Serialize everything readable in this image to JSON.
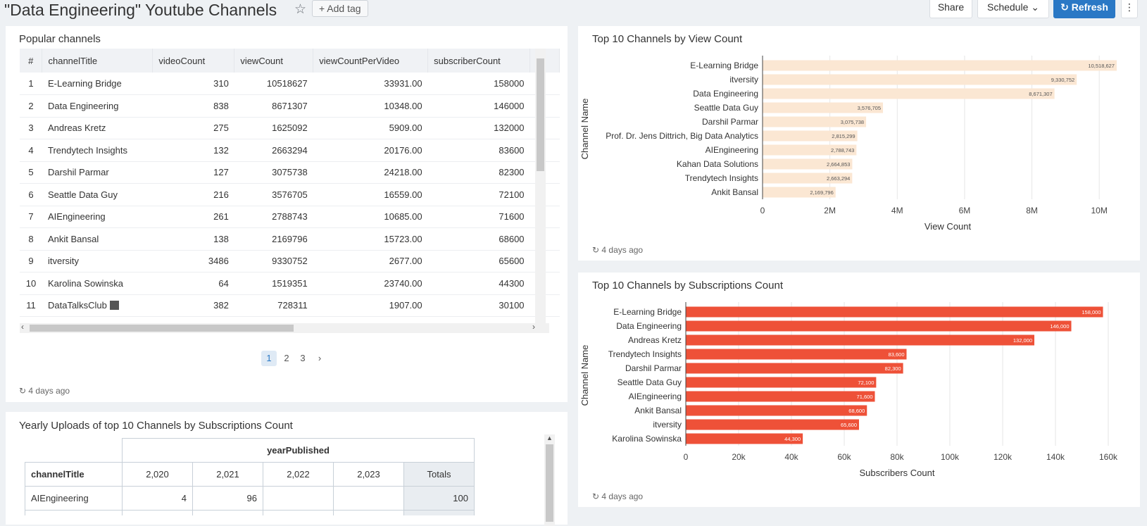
{
  "header": {
    "title": "\"Data Engineering\" Youtube Channels",
    "add_tag": "Add tag",
    "share": "Share",
    "schedule": "Schedule",
    "refresh": "Refresh"
  },
  "popular": {
    "title": "Popular channels",
    "columns": [
      "#",
      "channelTitle",
      "videoCount",
      "viewCount",
      "viewCountPerVideo",
      "subscriberCount"
    ],
    "rows": [
      [
        "1",
        "E-Learning Bridge",
        "310",
        "10518627",
        "33931.00",
        "158000"
      ],
      [
        "2",
        "Data Engineering",
        "838",
        "8671307",
        "10348.00",
        "146000"
      ],
      [
        "3",
        "Andreas Kretz",
        "275",
        "1625092",
        "5909.00",
        "132000"
      ],
      [
        "4",
        "Trendytech Insights",
        "132",
        "2663294",
        "20176.00",
        "83600"
      ],
      [
        "5",
        "Darshil Parmar",
        "127",
        "3075738",
        "24218.00",
        "82300"
      ],
      [
        "6",
        "Seattle Data Guy",
        "216",
        "3576705",
        "16559.00",
        "72100"
      ],
      [
        "7",
        "AIEngineering",
        "261",
        "2788743",
        "10685.00",
        "71600"
      ],
      [
        "8",
        "Ankit Bansal",
        "138",
        "2169796",
        "15723.00",
        "68600"
      ],
      [
        "9",
        "itversity",
        "3486",
        "9330752",
        "2677.00",
        "65600"
      ],
      [
        "10",
        "Karolina Sowinska",
        "64",
        "1519351",
        "23740.00",
        "44300"
      ],
      [
        "11",
        "DataTalksClub",
        "382",
        "728311",
        "1907.00",
        "30100"
      ]
    ],
    "pages": [
      "1",
      "2",
      "3"
    ],
    "footer": "4 days ago"
  },
  "yearly": {
    "title": "Yearly Uploads of top 10 Channels by Subscriptions Count",
    "col_group": "yearPublished",
    "row_header": "channelTitle",
    "years": [
      "2,020",
      "2,021",
      "2,022",
      "2,023"
    ],
    "totals_label": "Totals",
    "rows": [
      {
        "name": "AIEngineering",
        "values": [
          "4",
          "96",
          "",
          ""
        ],
        "total": "100"
      }
    ]
  },
  "views_chart": {
    "title": "Top 10 Channels by View Count",
    "footer": "4 days ago",
    "bar_color": "#fbe7d3"
  },
  "subs_chart": {
    "title": "Top 10 Channels by Subscriptions Count",
    "footer": "4 days ago",
    "bar_color": "#ee5138"
  },
  "chart_data": [
    {
      "type": "bar",
      "orientation": "horizontal",
      "title": "Top 10 Channels by View Count",
      "xlabel": "View Count",
      "ylabel": "Channel Name",
      "categories": [
        "E-Learning Bridge",
        "itversity",
        "Data Engineering",
        "Seattle Data Guy",
        "Darshil Parmar",
        "Prof. Dr. Jens Dittrich, Big Data Analytics",
        "AIEngineering",
        "Kahan Data Solutions",
        "Trendytech Insights",
        "Ankit Bansal"
      ],
      "values": [
        10518627,
        9330752,
        8671307,
        3576705,
        3075738,
        2815299,
        2788743,
        2664853,
        2663294,
        2169796
      ],
      "labels": [
        "10,518,627",
        "9,330,752",
        "8,671,307",
        "3,576,705",
        "3,075,738",
        "2,815,299",
        "2,788,743",
        "2,664,853",
        "2,663,294",
        "2,169,796"
      ],
      "xlim": [
        0,
        11000000
      ],
      "xticks": [
        0,
        2000000,
        4000000,
        6000000,
        8000000,
        10000000
      ],
      "xtick_labels": [
        "0",
        "2M",
        "4M",
        "6M",
        "8M",
        "10M"
      ],
      "grid": true
    },
    {
      "type": "bar",
      "orientation": "horizontal",
      "title": "Top 10 Channels by Subscriptions Count",
      "xlabel": "Subscribers Count",
      "ylabel": "Channel Name",
      "categories": [
        "E-Learning Bridge",
        "Data Engineering",
        "Andreas Kretz",
        "Trendytech Insights",
        "Darshil Parmar",
        "Seattle Data Guy",
        "AIEngineering",
        "Ankit Bansal",
        "itversity",
        "Karolina Sowinska"
      ],
      "values": [
        158000,
        146000,
        132000,
        83600,
        82300,
        72100,
        71600,
        68600,
        65600,
        44300
      ],
      "labels": [
        "158,000",
        "146,000",
        "132,000",
        "83,600",
        "82,300",
        "72,100",
        "71,600",
        "68,600",
        "65,600",
        "44,300"
      ],
      "xlim": [
        0,
        160000
      ],
      "xticks": [
        0,
        20000,
        40000,
        60000,
        80000,
        100000,
        120000,
        140000,
        160000
      ],
      "xtick_labels": [
        "0",
        "20k",
        "40k",
        "60k",
        "80k",
        "100k",
        "120k",
        "140k",
        "160k"
      ],
      "grid": true
    }
  ]
}
